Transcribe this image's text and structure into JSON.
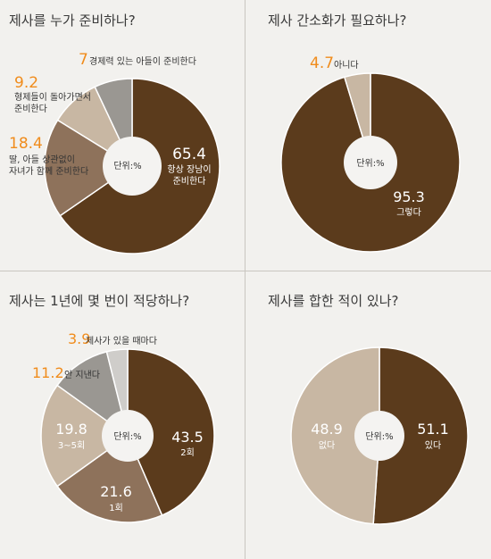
{
  "unit_label": "단위:%",
  "colors": {
    "dark": "#5b3b1c",
    "mid": "#8e725b",
    "light": "#c8b7a3",
    "gray": "#9a9792",
    "lightgray": "#cfcdca",
    "accent": "#f08c1c",
    "center": "#f4f3f1"
  },
  "chart_data": [
    {
      "type": "pie",
      "title": "제사를 누가 준비하나?",
      "slices": [
        {
          "value": 65.4,
          "label": [
            "항상 장남이",
            "준비한다"
          ]
        },
        {
          "value": 18.4,
          "label": [
            "딸, 아들 상관없이",
            "자녀가 함께 준비한다"
          ]
        },
        {
          "value": 9.2,
          "label": [
            "형제들이 돌아가면서",
            "준비한다"
          ]
        },
        {
          "value": 7,
          "label": [
            "경제력 있는 아들이 준비한다"
          ]
        }
      ]
    },
    {
      "type": "pie",
      "title": "제사 간소화가 필요하나?",
      "slices": [
        {
          "value": 95.3,
          "label": [
            "그렇다"
          ]
        },
        {
          "value": 4.7,
          "label": [
            "아니다"
          ]
        }
      ]
    },
    {
      "type": "pie",
      "title": "제사는 1년에 몇 번이 적당하나?",
      "slices": [
        {
          "value": 43.5,
          "label": [
            "2회"
          ]
        },
        {
          "value": 21.6,
          "label": [
            "1회"
          ]
        },
        {
          "value": 19.8,
          "label": [
            "3~5회"
          ]
        },
        {
          "value": 11.2,
          "label": [
            "안 지낸다"
          ]
        },
        {
          "value": 3.9,
          "label": [
            "제사가 있을 때마다"
          ]
        }
      ]
    },
    {
      "type": "pie",
      "title": "제사를 합한 적이 있나?",
      "slices": [
        {
          "value": 51.1,
          "label": [
            "있다"
          ]
        },
        {
          "value": 48.9,
          "label": [
            "없다"
          ]
        }
      ]
    }
  ]
}
